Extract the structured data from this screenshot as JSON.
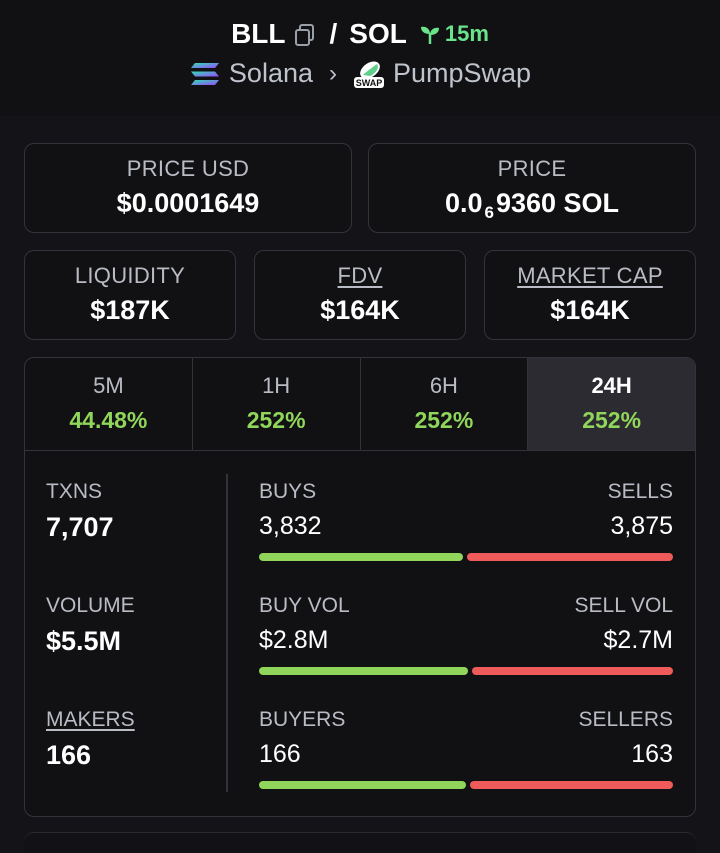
{
  "header": {
    "base_token": "BLL",
    "separator": "/",
    "quote_token": "SOL",
    "age": "15m",
    "chain": "Solana",
    "dex": "PumpSwap",
    "dex_badge": "SWAP"
  },
  "price_usd": {
    "label": "PRICE USD",
    "value": "$0.0001649"
  },
  "price_native": {
    "label": "PRICE",
    "prefix": "0.0",
    "zeros_sub": "6",
    "digits": "9360 SOL"
  },
  "liquidity": {
    "label": "LIQUIDITY",
    "value": "$187K"
  },
  "fdv": {
    "label": "FDV",
    "value": "$164K"
  },
  "market_cap": {
    "label": "MARKET CAP",
    "value": "$164K"
  },
  "tabs": [
    {
      "label": "5M",
      "value": "44.48%"
    },
    {
      "label": "1H",
      "value": "252%"
    },
    {
      "label": "6H",
      "value": "252%"
    },
    {
      "label": "24H",
      "value": "252%"
    }
  ],
  "stats": {
    "txns": {
      "label": "TXNS",
      "value": "7,707"
    },
    "volume": {
      "label": "VOLUME",
      "value": "$5.5M"
    },
    "makers": {
      "label": "MAKERS",
      "value": "166"
    },
    "buys": {
      "label": "BUYS",
      "value": "3,832",
      "share": 0.497
    },
    "sells": {
      "label": "SELLS",
      "value": "3,875"
    },
    "buy_vol": {
      "label": "BUY VOL",
      "value": "$2.8M",
      "share": 0.509
    },
    "sell_vol": {
      "label": "SELL VOL",
      "value": "$2.7M"
    },
    "buyers": {
      "label": "BUYERS",
      "value": "166",
      "share": 0.505
    },
    "sellers": {
      "label": "SELLERS",
      "value": "163"
    }
  },
  "colors": {
    "up": "#8fd65a",
    "down": "#ef5a5a",
    "age": "#6be38a"
  }
}
